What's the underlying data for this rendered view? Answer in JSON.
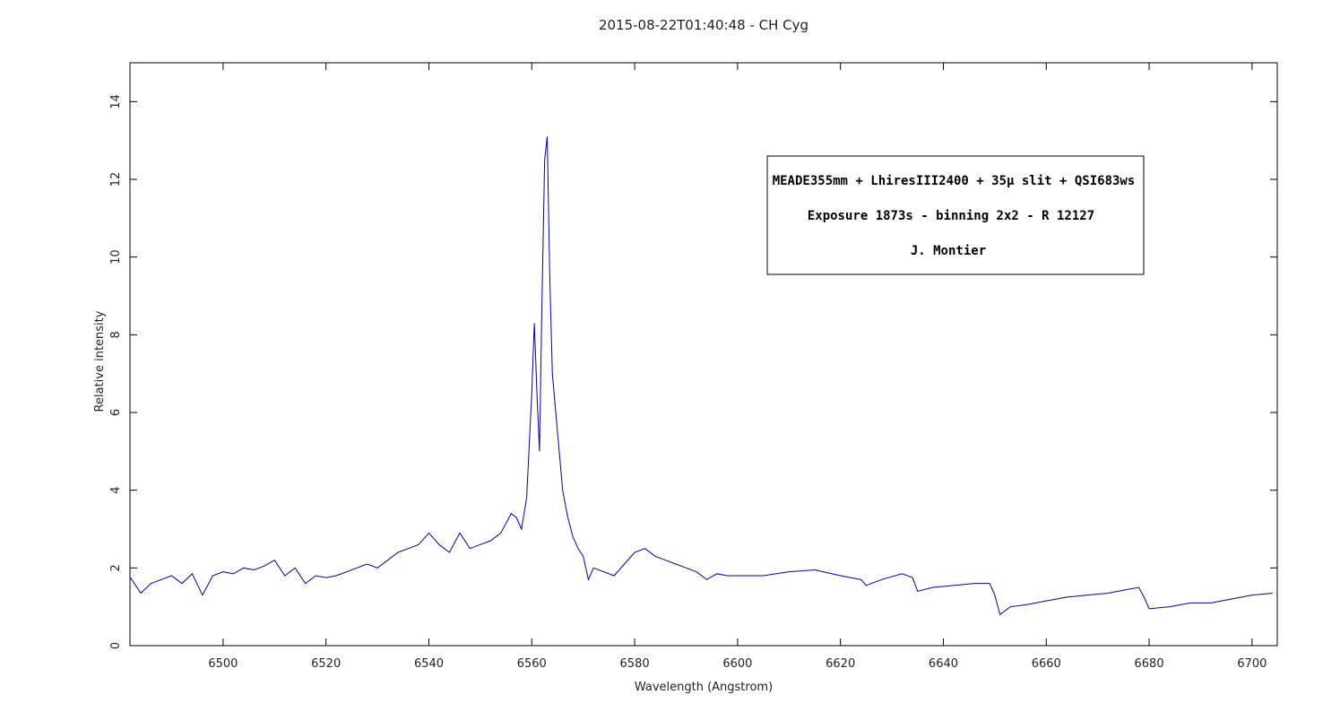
{
  "chart_data": {
    "type": "line",
    "title": "2015-08-22T01:40:48 - CH Cyg",
    "x_label": "Wavelength (Angstrom)",
    "y_label": "Relative intensity",
    "annotations": [
      "MEADE355mm + LhiresIII2400 + 35µ slit + QSI683ws",
      "Exposure 1873s - binning 2x2 - R 12127",
      "J. Montier"
    ],
    "color": "#0000aa",
    "x": [
      6482,
      6484,
      6486,
      6488,
      6490,
      6492,
      6494,
      6496,
      6498,
      6500,
      6502,
      6504,
      6506,
      6508,
      6510,
      6512,
      6514,
      6516,
      6518,
      6520,
      6522,
      6524,
      6526,
      6528,
      6530,
      6532,
      6534,
      6536,
      6538,
      6540,
      6542,
      6544,
      6546,
      6548,
      6550,
      6552,
      6554,
      6556,
      6557,
      6558,
      6559,
      6560,
      6560.5,
      6561,
      6561.5,
      6562,
      6562.5,
      6563,
      6563.5,
      6564,
      6565,
      6566,
      6567,
      6568,
      6569,
      6570,
      6571,
      6572,
      6574,
      6576,
      6578,
      6580,
      6582,
      6584,
      6586,
      6588,
      6590,
      6592,
      6594,
      6596,
      6598,
      6600,
      6605,
      6610,
      6615,
      6620,
      6624,
      6625,
      6628,
      6632,
      6634,
      6635,
      6638,
      6642,
      6646,
      6649,
      6650,
      6651,
      6653,
      6656,
      6660,
      6664,
      6668,
      6672,
      6676,
      6678,
      6679,
      6680,
      6684,
      6688,
      6692,
      6696,
      6700,
      6704
    ],
    "values": [
      1.75,
      1.35,
      1.6,
      1.7,
      1.8,
      1.6,
      1.85,
      1.3,
      1.8,
      1.9,
      1.85,
      2.0,
      1.95,
      2.05,
      2.2,
      1.8,
      2.0,
      1.6,
      1.8,
      1.75,
      1.8,
      1.9,
      2.0,
      2.1,
      2.0,
      2.2,
      2.4,
      2.5,
      2.6,
      2.9,
      2.6,
      2.4,
      2.9,
      2.5,
      2.6,
      2.7,
      2.9,
      3.4,
      3.3,
      3.0,
      3.8,
      6.5,
      8.3,
      6.5,
      5.0,
      9.0,
      12.5,
      13.1,
      9.5,
      7.0,
      5.5,
      4.0,
      3.3,
      2.8,
      2.5,
      2.3,
      1.7,
      2.0,
      1.9,
      1.8,
      2.1,
      2.4,
      2.5,
      2.3,
      2.2,
      2.1,
      2.0,
      1.9,
      1.7,
      1.85,
      1.8,
      1.8,
      1.8,
      1.9,
      1.95,
      1.8,
      1.7,
      1.55,
      1.7,
      1.85,
      1.75,
      1.4,
      1.5,
      1.55,
      1.6,
      1.6,
      1.3,
      0.8,
      1.0,
      1.05,
      1.15,
      1.25,
      1.3,
      1.35,
      1.45,
      1.5,
      1.25,
      0.95,
      1.0,
      1.1,
      1.1,
      1.2,
      1.3,
      1.35
    ],
    "xlim": [
      6481.9,
      6704.9
    ],
    "xticks": [
      6500,
      6520,
      6540,
      6560,
      6580,
      6600,
      6620,
      6640,
      6660,
      6680,
      6700
    ],
    "ylim": [
      0,
      15
    ],
    "yticks": [
      0,
      2,
      4,
      6,
      8,
      10,
      12,
      14
    ],
    "grid": false
  }
}
